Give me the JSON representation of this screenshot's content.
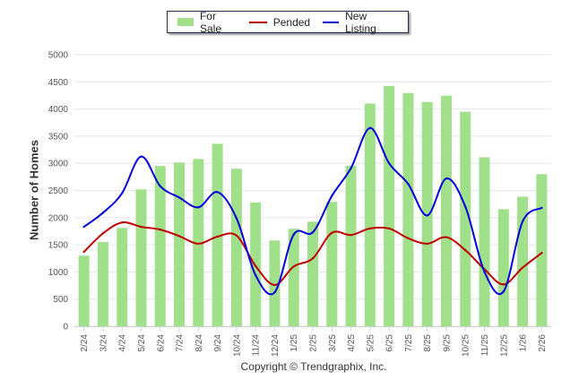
{
  "legend": {
    "items": [
      {
        "label": "For Sale",
        "color": "#a0e08a",
        "kind": "bar"
      },
      {
        "label": "Pended",
        "color": "#c00000",
        "kind": "line"
      },
      {
        "label": "New Listing",
        "color": "#0000dd",
        "kind": "line"
      }
    ]
  },
  "copyright": "Copyright © Trendgraphix, Inc.",
  "chart_data": {
    "type": "bar",
    "title": "",
    "xlabel": "",
    "ylabel": "Number of Homes",
    "ylim": [
      0,
      5000
    ],
    "yticks": [
      0,
      500,
      1000,
      1500,
      2000,
      2500,
      3000,
      3500,
      4000,
      4500,
      5000
    ],
    "grid": true,
    "legend_position": "top-center",
    "categories": [
      "2/24",
      "3/24",
      "4/24",
      "5/24",
      "6/24",
      "7/24",
      "8/24",
      "9/24",
      "10/24",
      "11/24",
      "12/24",
      "1/25",
      "2/25",
      "3/25",
      "4/25",
      "5/25",
      "6/25",
      "7/25",
      "8/25",
      "9/25",
      "10/25",
      "11/25",
      "12/25",
      "1/26",
      "2/26"
    ],
    "series": [
      {
        "name": "For Sale",
        "type": "bar",
        "color": "#a0e08a",
        "values": [
          1300,
          1550,
          1810,
          2520,
          2950,
          3015,
          3080,
          3360,
          2900,
          2280,
          1580,
          1795,
          1925,
          2290,
          2955,
          4100,
          4425,
          4295,
          4130,
          4245,
          3950,
          3110,
          2155,
          2385,
          2800
        ]
      },
      {
        "name": "Pended",
        "type": "line",
        "color": "#c00000",
        "values": [
          1370,
          1710,
          1910,
          1830,
          1780,
          1660,
          1520,
          1650,
          1670,
          1110,
          760,
          1100,
          1250,
          1720,
          1680,
          1800,
          1800,
          1620,
          1520,
          1640,
          1400,
          1050,
          770,
          1080,
          1350
        ]
      },
      {
        "name": "New Listing",
        "type": "line",
        "color": "#0000dd",
        "values": [
          1830,
          2090,
          2450,
          3125,
          2580,
          2370,
          2190,
          2470,
          1990,
          940,
          625,
          1690,
          1730,
          2400,
          2910,
          3650,
          3000,
          2620,
          2040,
          2720,
          2200,
          1000,
          640,
          1930,
          2180
        ]
      }
    ]
  }
}
